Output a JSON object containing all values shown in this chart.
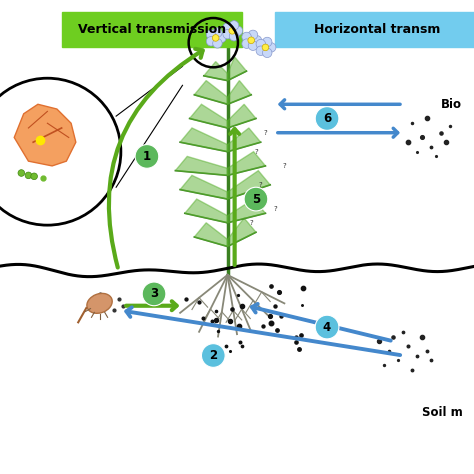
{
  "bg_color": "#ffffff",
  "vertical_label": "Vertical transmission",
  "horizontal_label": "Horizontal transm",
  "bio_label": "Bio",
  "soil_label": "Soil m",
  "figsize": [
    4.74,
    4.74
  ],
  "dpi": 100,
  "green_arrow_color": "#5aaa1a",
  "blue_arrow_color": "#4488cc",
  "number_circle_green": "#5cb85c",
  "number_circle_blue": "#5bc0de",
  "green_label_bg": "#6dc e20",
  "blue_label_bg": "#72ccee"
}
